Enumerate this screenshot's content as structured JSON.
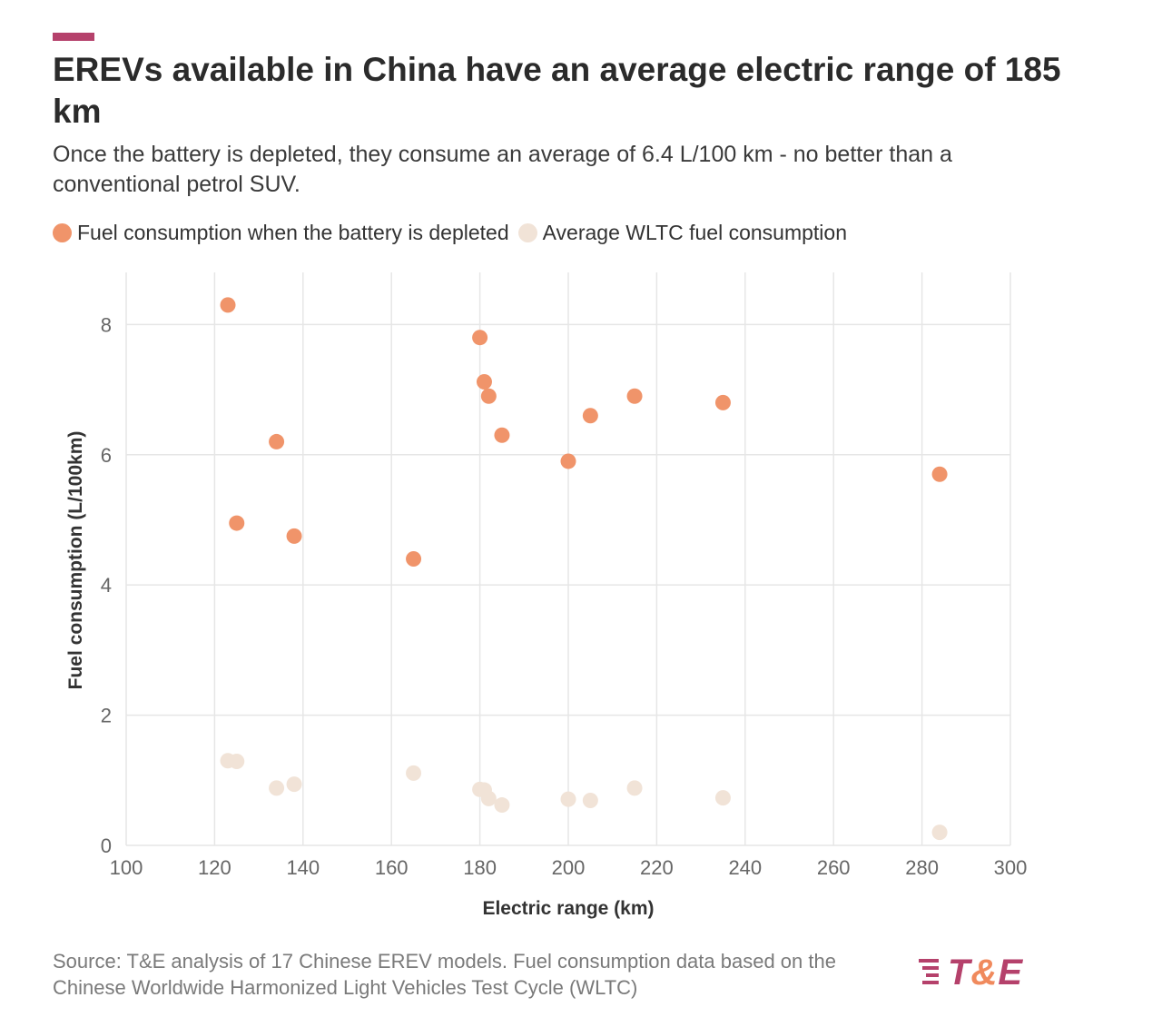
{
  "colors": {
    "accent": "#b5416b",
    "depleted": "#f0946a",
    "wltc": "#f1e3d7",
    "grid": "#e6e6e6",
    "axis_text": "#666666",
    "logo_t": "#b5416b",
    "logo_amp": "#f08a5d"
  },
  "header": {
    "title": "EREVs available in China have an average electric range of 185 km",
    "subtitle": "Once the battery is depleted, they consume an average of 6.4 L/100 km - no better than a conventional petrol SUV."
  },
  "legend": {
    "items": [
      {
        "label": "Fuel consumption when the battery is depleted",
        "color": "#f0946a"
      },
      {
        "label": "Average WLTC fuel consumption",
        "color": "#f1e3d7"
      }
    ]
  },
  "chart_data": {
    "type": "scatter",
    "title": "EREVs available in China have an average electric range of 185 km",
    "xlabel": "Electric range (km)",
    "ylabel": "Fuel consumption (L/100km)",
    "xlim": [
      100,
      300
    ],
    "ylim": [
      0,
      8.8
    ],
    "xticks": [
      100,
      120,
      140,
      160,
      180,
      200,
      220,
      240,
      260,
      280,
      300
    ],
    "yticks": [
      0,
      2,
      4,
      6,
      8
    ],
    "grid": true,
    "series": [
      {
        "name": "Average WLTC fuel consumption",
        "color": "#f1e3d7",
        "points": [
          {
            "x": 123,
            "y": 1.3
          },
          {
            "x": 125,
            "y": 1.29
          },
          {
            "x": 134,
            "y": 0.88
          },
          {
            "x": 138,
            "y": 0.94
          },
          {
            "x": 165,
            "y": 1.11
          },
          {
            "x": 180,
            "y": 0.86
          },
          {
            "x": 181,
            "y": 0.85
          },
          {
            "x": 182,
            "y": 0.72
          },
          {
            "x": 185,
            "y": 0.62
          },
          {
            "x": 200,
            "y": 0.71
          },
          {
            "x": 205,
            "y": 0.69
          },
          {
            "x": 215,
            "y": 0.88
          },
          {
            "x": 235,
            "y": 0.73
          },
          {
            "x": 284,
            "y": 0.2
          }
        ]
      },
      {
        "name": "Fuel consumption when the battery is depleted",
        "color": "#f0946a",
        "points": [
          {
            "x": 123,
            "y": 8.3
          },
          {
            "x": 125,
            "y": 4.95
          },
          {
            "x": 134,
            "y": 6.2
          },
          {
            "x": 138,
            "y": 4.75
          },
          {
            "x": 165,
            "y": 4.4
          },
          {
            "x": 180,
            "y": 7.8
          },
          {
            "x": 181,
            "y": 7.12
          },
          {
            "x": 182,
            "y": 6.9
          },
          {
            "x": 185,
            "y": 6.3
          },
          {
            "x": 200,
            "y": 5.9
          },
          {
            "x": 205,
            "y": 6.6
          },
          {
            "x": 215,
            "y": 6.9
          },
          {
            "x": 235,
            "y": 6.8
          },
          {
            "x": 284,
            "y": 5.7
          }
        ]
      }
    ]
  },
  "footer": {
    "source": "Source: T&E analysis of 17 Chinese EREV models. Fuel consumption data based on the Chinese Worldwide Harmonized Light Vehicles Test Cycle (WLTC)",
    "logo_t": "T",
    "logo_amp": "&",
    "logo_e": "E"
  }
}
